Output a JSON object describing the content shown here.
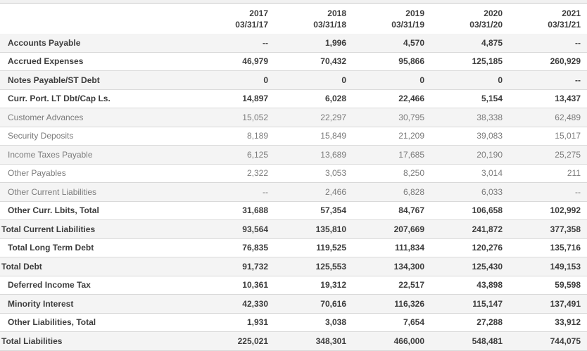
{
  "colors": {
    "stripe_row_bg": "#f4f4f4",
    "plain_row_bg": "#ffffff",
    "bold_text": "#3d3d3d",
    "muted_text": "#7b7b7b",
    "row_border": "#d9d9d9",
    "top_strip_bg": "#f1f1f1",
    "top_strip_border": "#c8c8c8"
  },
  "table": {
    "columns": [
      {
        "year": "2017",
        "date": "03/31/17"
      },
      {
        "year": "2018",
        "date": "03/31/18"
      },
      {
        "year": "2019",
        "date": "03/31/19"
      },
      {
        "year": "2020",
        "date": "03/31/20"
      },
      {
        "year": "2021",
        "date": "03/31/21"
      }
    ],
    "rows": [
      {
        "label": "Accounts Payable",
        "style": "bold",
        "indent": 1,
        "values": [
          "--",
          "1,996",
          "4,570",
          "4,875",
          "--"
        ]
      },
      {
        "label": "Accrued Expenses",
        "style": "bold",
        "indent": 1,
        "values": [
          "46,979",
          "70,432",
          "95,866",
          "125,185",
          "260,929"
        ]
      },
      {
        "label": "Notes Payable/ST Debt",
        "style": "bold",
        "indent": 1,
        "values": [
          "0",
          "0",
          "0",
          "0",
          "--"
        ]
      },
      {
        "label": "Curr. Port. LT Dbt/Cap Ls.",
        "style": "bold",
        "indent": 1,
        "values": [
          "14,897",
          "6,028",
          "22,466",
          "5,154",
          "13,437"
        ]
      },
      {
        "label": "Customer Advances",
        "style": "normal",
        "indent": 1,
        "values": [
          "15,052",
          "22,297",
          "30,795",
          "38,338",
          "62,489"
        ]
      },
      {
        "label": "Security Deposits",
        "style": "normal",
        "indent": 1,
        "values": [
          "8,189",
          "15,849",
          "21,209",
          "39,083",
          "15,017"
        ]
      },
      {
        "label": "Income Taxes Payable",
        "style": "normal",
        "indent": 1,
        "values": [
          "6,125",
          "13,689",
          "17,685",
          "20,190",
          "25,275"
        ]
      },
      {
        "label": "Other Payables",
        "style": "normal",
        "indent": 1,
        "values": [
          "2,322",
          "3,053",
          "8,250",
          "3,014",
          "211"
        ]
      },
      {
        "label": "Other Current Liabilities",
        "style": "normal",
        "indent": 1,
        "values": [
          "--",
          "2,466",
          "6,828",
          "6,033",
          "--"
        ]
      },
      {
        "label": "Other Curr. Lbits, Total",
        "style": "bold",
        "indent": 1,
        "values": [
          "31,688",
          "57,354",
          "84,767",
          "106,658",
          "102,992"
        ]
      },
      {
        "label": "Total Current Liabilities",
        "style": "bold",
        "indent": 0,
        "values": [
          "93,564",
          "135,810",
          "207,669",
          "241,872",
          "377,358"
        ]
      },
      {
        "label": "Total Long Term Debt",
        "style": "bold",
        "indent": 1,
        "values": [
          "76,835",
          "119,525",
          "111,834",
          "120,276",
          "135,716"
        ]
      },
      {
        "label": "Total Debt",
        "style": "bold",
        "indent": 0,
        "values": [
          "91,732",
          "125,553",
          "134,300",
          "125,430",
          "149,153"
        ]
      },
      {
        "label": "Deferred Income Tax",
        "style": "bold",
        "indent": 1,
        "values": [
          "10,361",
          "19,312",
          "22,517",
          "43,898",
          "59,598"
        ]
      },
      {
        "label": "Minority Interest",
        "style": "bold",
        "indent": 1,
        "values": [
          "42,330",
          "70,616",
          "116,326",
          "115,147",
          "137,491"
        ]
      },
      {
        "label": "Other Liabilities, Total",
        "style": "bold",
        "indent": 1,
        "values": [
          "1,931",
          "3,038",
          "7,654",
          "27,288",
          "33,912"
        ]
      },
      {
        "label": "Total Liabilities",
        "style": "bold",
        "indent": 0,
        "values": [
          "225,021",
          "348,301",
          "466,000",
          "548,481",
          "744,075"
        ]
      }
    ]
  }
}
